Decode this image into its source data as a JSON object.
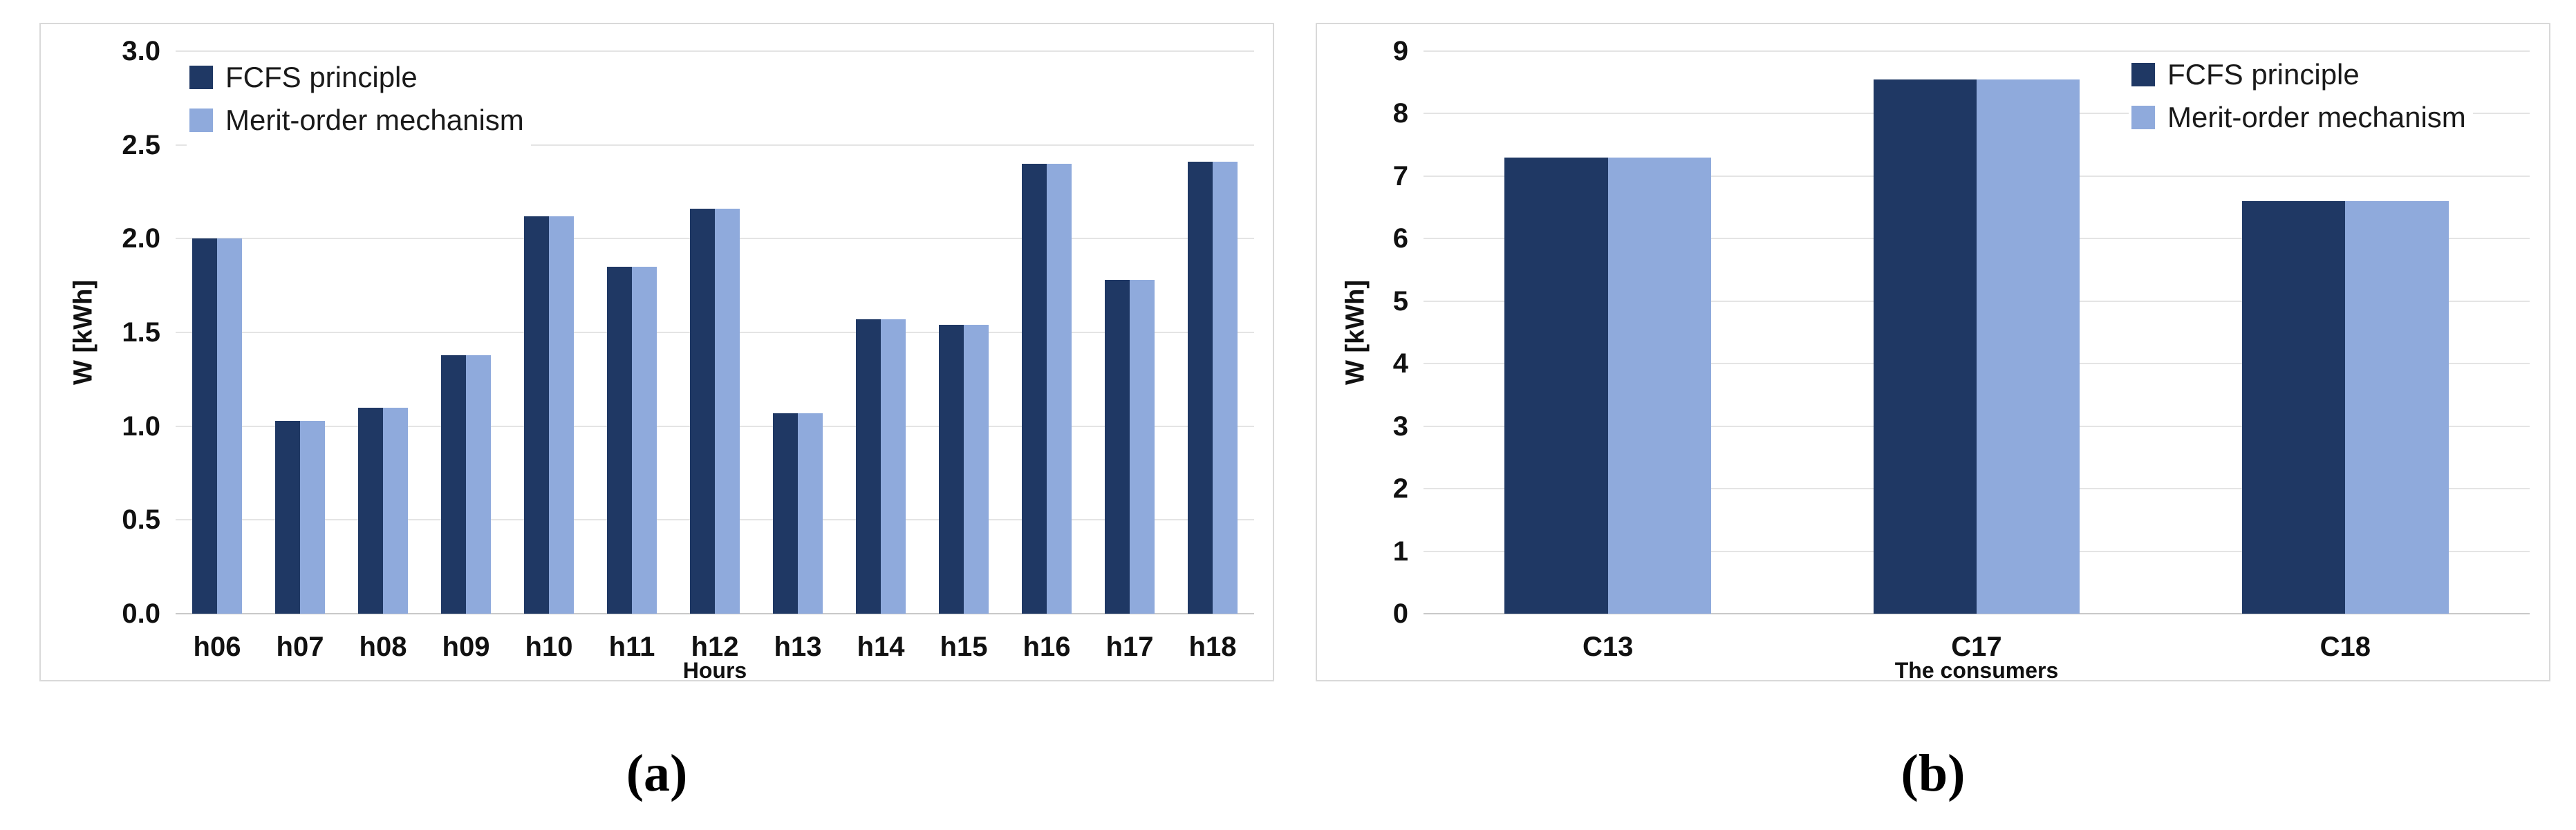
{
  "figure": {
    "background": "#ffffff",
    "series_colors": {
      "fcfs": "#1F3864",
      "merit": "#8FAADC"
    }
  },
  "chart_data": [
    {
      "id": "a",
      "type": "bar",
      "panel_caption": "(a)",
      "xlabel": "Hours",
      "ylabel": "W  [kWh]",
      "ylim": [
        0,
        3
      ],
      "grid": true,
      "legend_position": "top-left",
      "ytick_values": [
        0,
        0.5,
        1,
        1.5,
        2,
        2.5,
        3
      ],
      "ytick_labels": [
        "0.0",
        "0.5",
        "1.0",
        "1.5",
        "2.0",
        "2.5",
        "3.0"
      ],
      "categories": [
        "h06",
        "h07",
        "h08",
        "h09",
        "h10",
        "h11",
        "h12",
        "h13",
        "h14",
        "h15",
        "h16",
        "h17",
        "h18"
      ],
      "series": [
        {
          "name": "FCFS principle",
          "color": "#1F3864",
          "values": [
            2.0,
            1.03,
            1.1,
            1.38,
            2.12,
            1.85,
            2.16,
            1.07,
            1.57,
            1.54,
            2.4,
            1.78,
            2.41
          ]
        },
        {
          "name": "Merit-order mechanism",
          "color": "#8FAADC",
          "values": [
            2.0,
            1.03,
            1.1,
            1.38,
            2.12,
            1.85,
            2.16,
            1.07,
            1.57,
            1.54,
            2.4,
            1.78,
            2.41
          ]
        }
      ]
    },
    {
      "id": "b",
      "type": "bar",
      "panel_caption": "(b)",
      "xlabel": "The consumers",
      "ylabel": "W  [kWh]",
      "ylim": [
        0,
        9
      ],
      "grid": true,
      "legend_position": "top-right",
      "ytick_values": [
        0,
        1,
        2,
        3,
        4,
        5,
        6,
        7,
        8,
        9
      ],
      "ytick_labels": [
        "0",
        "1",
        "2",
        "3",
        "4",
        "5",
        "6",
        "7",
        "8",
        "9"
      ],
      "categories": [
        "C13",
        "C17",
        "C18"
      ],
      "series": [
        {
          "name": "FCFS principle",
          "color": "#1F3864",
          "values": [
            7.3,
            8.55,
            6.6
          ]
        },
        {
          "name": "Merit-order mechanism",
          "color": "#8FAADC",
          "values": [
            7.3,
            8.55,
            6.6
          ]
        }
      ]
    }
  ]
}
